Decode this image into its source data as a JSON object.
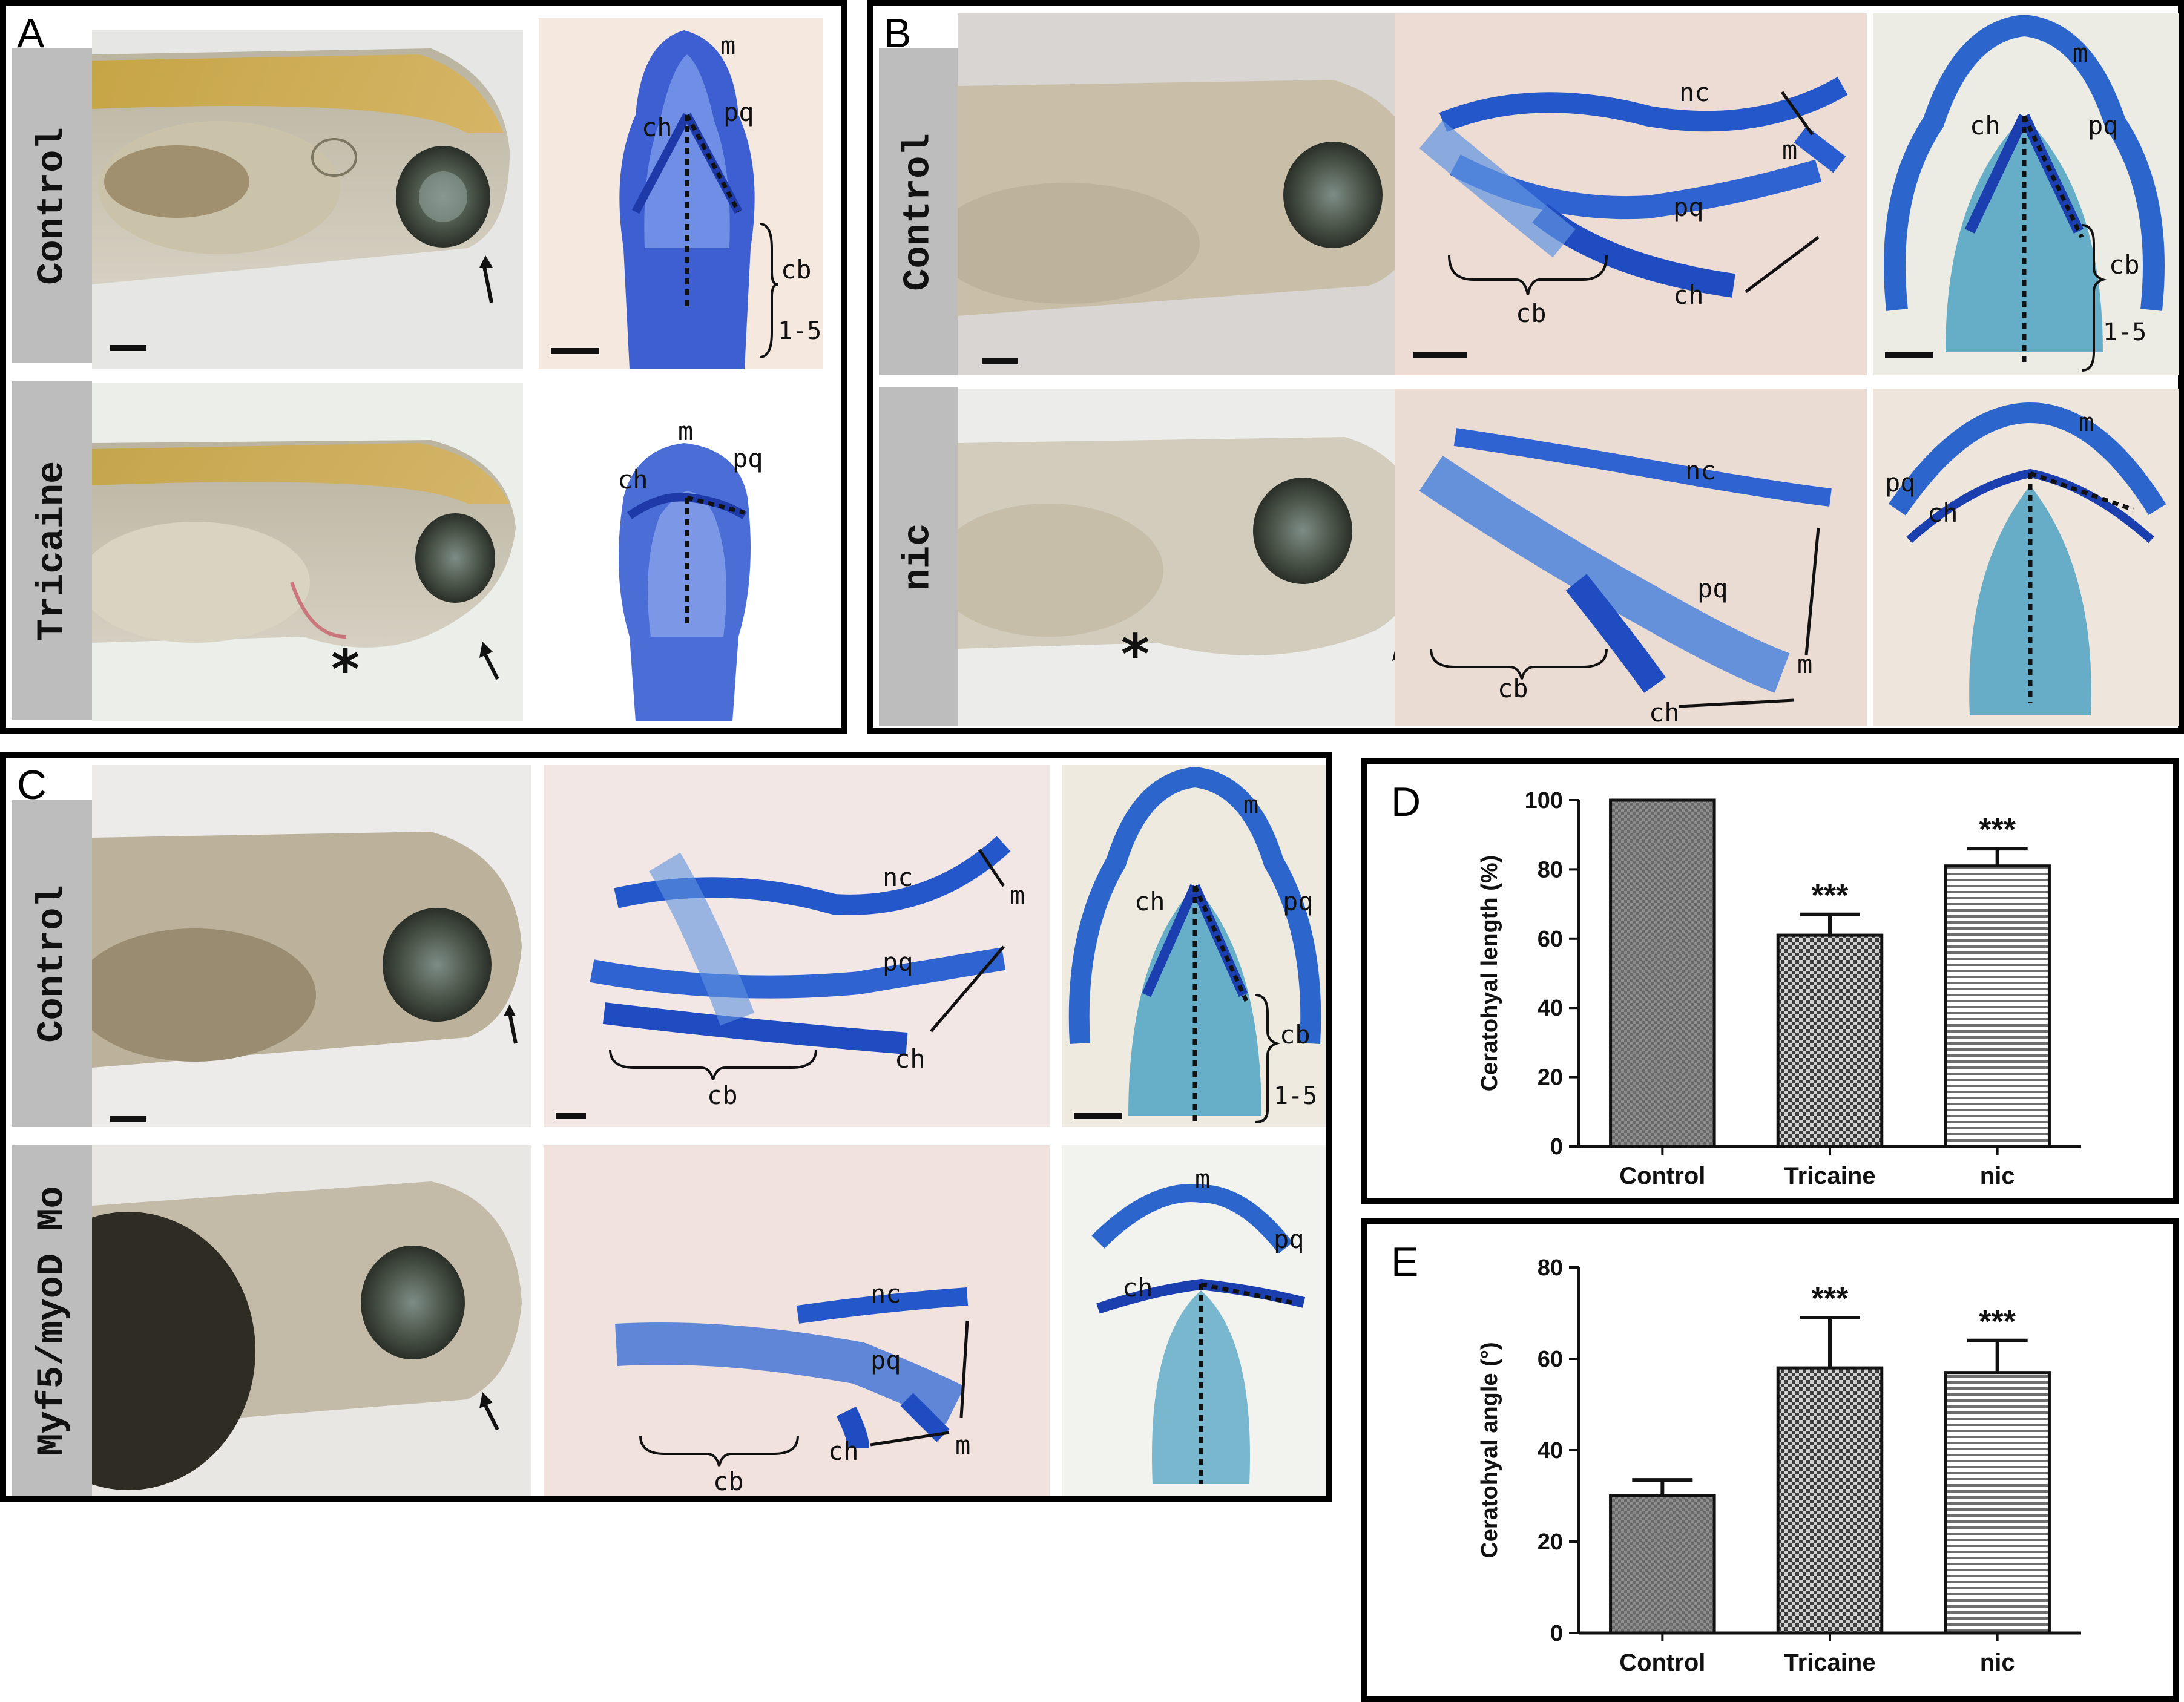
{
  "panels": {
    "A": {
      "letter": "A",
      "rows": [
        "Control",
        "Tricaine"
      ]
    },
    "B": {
      "letter": "B",
      "rows": [
        "Control",
        "nic"
      ]
    },
    "C": {
      "letter": "C",
      "rows": [
        "Control",
        "Myf5/myoD Mo"
      ]
    },
    "D": {
      "letter": "D"
    },
    "E": {
      "letter": "E"
    }
  },
  "labels": {
    "m": "m",
    "pq": "pq",
    "ch": "ch",
    "cb": "cb",
    "nc": "nc",
    "range": "1-5",
    "asterisk": "*"
  },
  "chart_data": [
    {
      "type": "bar",
      "panel": "D",
      "categories": [
        "Control",
        "Tricaine",
        "nic"
      ],
      "values": [
        100,
        61,
        81
      ],
      "errors": [
        0,
        6,
        5
      ],
      "significance": [
        "",
        "***",
        "***"
      ],
      "ylabel": "Ceratohyal length (%)",
      "ylim": [
        0,
        100
      ],
      "yticks": [
        "0",
        "20",
        "40",
        "60",
        "80",
        "100"
      ],
      "colors": [
        "#8a8a8a",
        "#6e6e6e",
        "#b5b5b5"
      ]
    },
    {
      "type": "bar",
      "panel": "E",
      "categories": [
        "Control",
        "Tricaine",
        "nic"
      ],
      "values": [
        30,
        58,
        57
      ],
      "errors": [
        3.5,
        11,
        7
      ],
      "significance": [
        "",
        "***",
        "***"
      ],
      "ylabel": "Ceratohyal angle (°)",
      "ylim": [
        0,
        80
      ],
      "yticks": [
        "0",
        "20",
        "40",
        "60",
        "80"
      ],
      "colors": [
        "#8a8a8a",
        "#6e6e6e",
        "#b5b5b5"
      ]
    }
  ]
}
